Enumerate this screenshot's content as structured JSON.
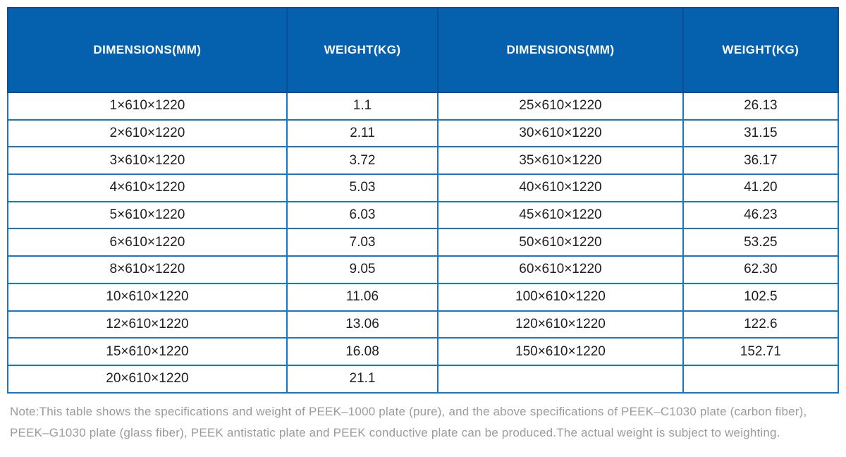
{
  "table": {
    "headers": [
      "DIMENSIONS(MM)",
      "WEIGHT(KG)",
      "DIMENSIONS(MM)",
      "WEIGHT(KG)"
    ],
    "rows": [
      [
        "1×610×1220",
        "1.1",
        "25×610×1220",
        "26.13"
      ],
      [
        "2×610×1220",
        "2.11",
        "30×610×1220",
        "31.15"
      ],
      [
        "3×610×1220",
        "3.72",
        "35×610×1220",
        "36.17"
      ],
      [
        "4×610×1220",
        "5.03",
        "40×610×1220",
        "41.20"
      ],
      [
        "5×610×1220",
        "6.03",
        "45×610×1220",
        "46.23"
      ],
      [
        "6×610×1220",
        "7.03",
        "50×610×1220",
        "53.25"
      ],
      [
        "8×610×1220",
        "9.05",
        "60×610×1220",
        "62.30"
      ],
      [
        "10×610×1220",
        "11.06",
        "100×610×1220",
        "102.5"
      ],
      [
        "12×610×1220",
        "13.06",
        "120×610×1220",
        "122.6"
      ],
      [
        "15×610×1220",
        "16.08",
        "150×610×1220",
        "152.71"
      ],
      [
        "20×610×1220",
        "21.1",
        "",
        ""
      ]
    ]
  },
  "note": {
    "line1": "Note:This table shows the specifications and weight of PEEK–1000 plate (pure), and the above specifications of PEEK–C1030 plate (carbon fiber),",
    "line2": "PEEK–G1030 plate (glass fiber), PEEK antistatic plate and PEEK conductive plate can be produced.The actual weight is subject to weighting."
  },
  "colors": {
    "header_bg": "#0561ad",
    "header_border": "#0b4e97",
    "body_border": "#1577c8",
    "body_text": "#1e1e1e",
    "note_text": "#9b9b9b"
  }
}
